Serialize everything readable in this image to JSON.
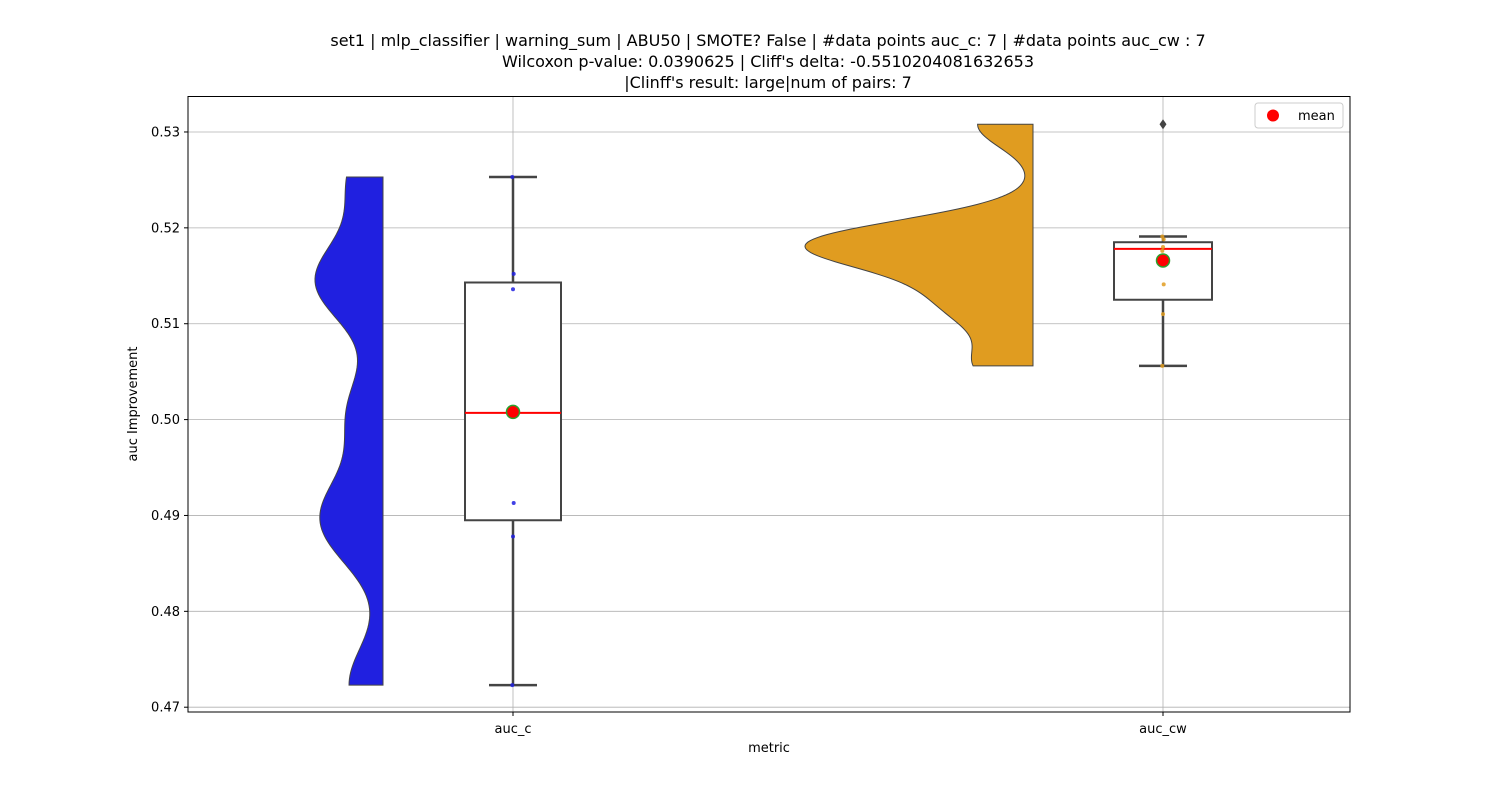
{
  "chart_data": {
    "type": "box-violin",
    "title_lines": [
      "set1 | mlp_classifier | warning_sum | ABU50 | SMOTE? False | #data points auc_c: 7 | #data points auc_cw : 7",
      "Wilcoxon p-value: 0.0390625 | Cliff's delta: -0.5510204081632653",
      "|Clinff's result: large|num of pairs: 7"
    ],
    "xlabel": "metric",
    "ylabel": "auc Improvement",
    "ylim": [
      0.4695,
      0.5337
    ],
    "yticks": [
      0.47,
      0.48,
      0.49,
      0.5,
      0.51,
      0.52,
      0.53
    ],
    "ytick_labels": [
      "0.47",
      "0.48",
      "0.49",
      "0.50",
      "0.51",
      "0.52",
      "0.53"
    ],
    "grid": true,
    "legend": {
      "position": "top-right",
      "entries": [
        {
          "label": "mean",
          "color": "#ff0000",
          "marker": "circle"
        }
      ]
    },
    "categories": [
      "auc_c",
      "auc_cw"
    ],
    "series": [
      {
        "category": "auc_c",
        "violin_color": "#2020e0",
        "box": {
          "whislo": 0.4723,
          "q1": 0.4895,
          "median": 0.5007,
          "q3": 0.5143,
          "whishi": 0.5253
        },
        "mean": 0.5008,
        "points": [
          0.4723,
          0.4878,
          0.4913,
          0.5008,
          0.5136,
          0.5152,
          0.5253
        ],
        "point_color": "#2020e0",
        "fliers": []
      },
      {
        "category": "auc_cw",
        "violin_color": "#e09c20",
        "box": {
          "whislo": 0.5056,
          "q1": 0.5125,
          "median": 0.5178,
          "q3": 0.5185,
          "whishi": 0.5191
        },
        "mean": 0.5166,
        "points": [
          0.5056,
          0.511,
          0.5141,
          0.5176,
          0.518,
          0.5188,
          0.5191
        ],
        "point_color": "#e09c20",
        "fliers": [
          0.5308
        ]
      }
    ],
    "mean_marker": {
      "fill": "#ff0000",
      "edge": "#2ca02c"
    },
    "median_color": "#ff0000"
  }
}
